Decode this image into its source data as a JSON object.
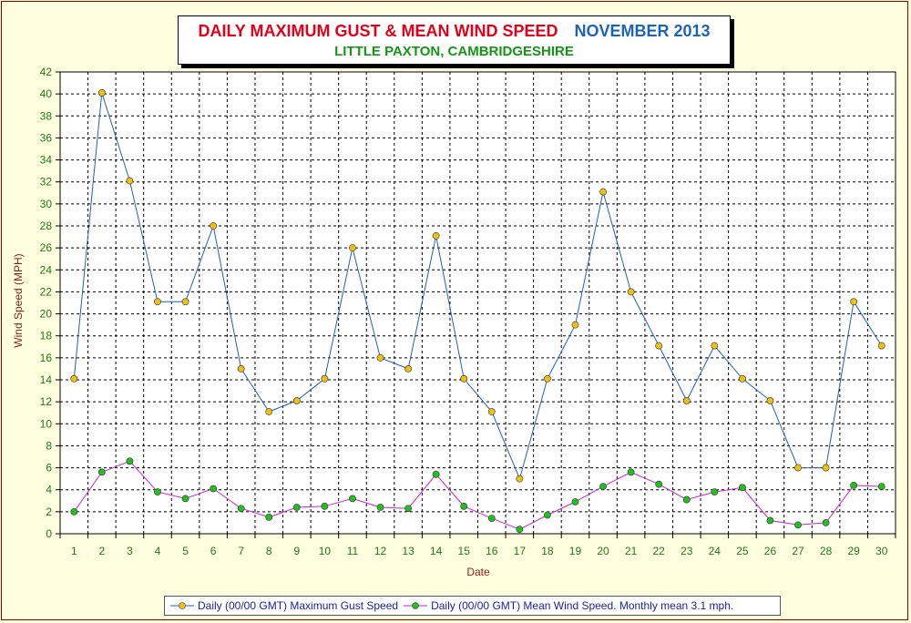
{
  "chart_data": {
    "type": "line",
    "title": "DAILY MAXIMUM GUST & MEAN WIND SPEED",
    "period": "NOVEMBER 2013",
    "subtitle": "LITTLE PAXTON, CAMBRIDGESHIRE",
    "xlabel": "Date",
    "ylabel": "Wind Speed (MPH)",
    "x": [
      1,
      2,
      3,
      4,
      5,
      6,
      7,
      8,
      9,
      10,
      11,
      12,
      13,
      14,
      15,
      16,
      17,
      18,
      19,
      20,
      21,
      22,
      23,
      24,
      25,
      26,
      27,
      28,
      29,
      30
    ],
    "ylim": [
      0,
      42
    ],
    "ytick_step": 2,
    "grid": true,
    "legend_position": "bottom",
    "series": [
      {
        "name": "Daily (00/00 GMT) Maximum Gust Speed",
        "color": "#1f5fc0",
        "marker_color": "#f0c010",
        "values": [
          14.1,
          40.1,
          32.1,
          21.1,
          21.1,
          28.0,
          15.0,
          11.1,
          12.1,
          14.1,
          26.0,
          16.0,
          15.0,
          27.1,
          14.1,
          11.1,
          5.0,
          14.1,
          19.0,
          31.1,
          22.0,
          17.1,
          12.1,
          17.1,
          14.1,
          12.1,
          6.0,
          6.0,
          21.1,
          17.1
        ]
      },
      {
        "name": "Daily (00/00 GMT) Mean Wind Speed. Monthly mean 3.1 mph.",
        "color": "#d020d0",
        "marker_color": "#20c020",
        "values": [
          2.0,
          5.6,
          6.6,
          3.8,
          3.2,
          4.1,
          2.3,
          1.5,
          2.4,
          2.5,
          3.2,
          2.4,
          2.3,
          5.4,
          2.5,
          1.4,
          0.4,
          1.7,
          2.9,
          4.3,
          5.6,
          4.5,
          3.1,
          3.8,
          4.2,
          1.2,
          0.8,
          1.0,
          4.4,
          4.3
        ]
      }
    ]
  }
}
